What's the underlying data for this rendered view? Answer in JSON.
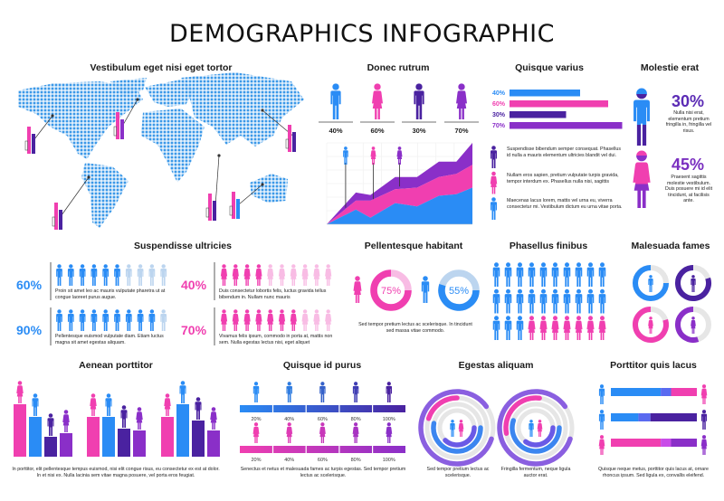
{
  "title": "DEMOGRAPHICS INFOGRAPHIC",
  "colors": {
    "blue": "#2a8cf5",
    "pink": "#f03fb0",
    "indigo": "#4a22a0",
    "purple": "#8a2fc8",
    "light_blue": "#bcd5ef",
    "light_pink": "#f8bce4",
    "ring_gray": "#e6e6e6",
    "map_dots": "#3b98e8"
  },
  "map": {
    "title": "Vestibulum eget nisi eget tortor"
  },
  "chart_data": [
    {
      "id": "donec_rutrum",
      "type": "area",
      "title": "Donec rutrum",
      "figures": [
        {
          "label": "40%",
          "figure": "male",
          "color": "#2a8cf5"
        },
        {
          "label": "60%",
          "figure": "female",
          "color": "#f03fb0"
        },
        {
          "label": "30%",
          "figure": "male",
          "color": "#4a22a0"
        },
        {
          "label": "70%",
          "figure": "female",
          "color": "#8a2fc8"
        }
      ],
      "x": [
        0,
        2,
        3,
        4.7,
        6.2,
        7.7,
        8.9,
        10
      ],
      "xlim": [
        0,
        10
      ],
      "ylim": [
        0,
        100
      ],
      "stacked": true,
      "grid": true,
      "series": [
        {
          "name": "male",
          "color": "#2a8cf5",
          "values": [
            0,
            18,
            8,
            26,
            22,
            35,
            37,
            45
          ]
        },
        {
          "name": "female",
          "color": "#f03fb0",
          "values": [
            0,
            11,
            21,
            17,
            23,
            23,
            25,
            28
          ]
        },
        {
          "name": "elderly",
          "color": "#8a2fc8",
          "values": [
            0,
            10,
            7,
            15,
            13,
            19,
            15,
            27
          ]
        }
      ],
      "pins": [
        {
          "figure": "male",
          "color": "#2a8cf5",
          "x": 1.3
        },
        {
          "figure": "female",
          "color": "#f03fb0",
          "x": 3.2
        },
        {
          "figure": "female",
          "color": "#8a2fc8",
          "x": 5.0
        }
      ]
    },
    {
      "id": "quisque_varius",
      "type": "bar",
      "orientation": "horizontal",
      "title": "Quisque varius",
      "bars": [
        {
          "label": "40%",
          "value": 40,
          "color": "#2a8cf5"
        },
        {
          "label": "60%",
          "value": 60,
          "color": "#f03fb0"
        },
        {
          "label": "30%",
          "value": 30,
          "color": "#4a22a0"
        },
        {
          "label": "70%",
          "value": 70,
          "color": "#8a2fc8"
        }
      ],
      "notes": [
        {
          "figure": "male",
          "color": "#4a22a0",
          "text": "Suspendisse bibendum semper consequat. Phasellus id nulla a mauris elementum ultricies blandit vel dui."
        },
        {
          "figure": "female",
          "color": "#f03fb0",
          "text": "Nullam eros sapien, pretium vulputate turpis gravida, tempor interdum ex. Phasellus nulla nisi, sagittis"
        },
        {
          "figure": "male",
          "color": "#2a8cf5",
          "text": "Maecenas lacus lorem, mattis vel urna eu, viverra consectetur mi. Vestibulum dictum eu urna vitae porta."
        }
      ]
    },
    {
      "id": "molestie_erat",
      "type": "stat",
      "title": "Molestie erat",
      "items": [
        {
          "label": "30%",
          "value": 30,
          "figure": "male",
          "top_color": "#2a8cf5",
          "bottom_color": "#4a22a0",
          "text": "Nulla nisi erat, elementum pretium fringilla in, fringilla vel risus."
        },
        {
          "label": "45%",
          "value": 45,
          "figure": "female",
          "top_color": "#f03fb0",
          "bottom_color": "#8a2fc8",
          "text": "Praesent sagittis molestie vestibulum. Duis posuere mi id elit tincidunt, at facilisis ante."
        }
      ]
    },
    {
      "id": "suspendisse_ultricies",
      "type": "pictogram",
      "title": "Suspendisse ultricies",
      "total": 10,
      "rows": [
        {
          "label": "60%",
          "filled": 6,
          "figure": "male",
          "color": "#2a8cf5",
          "empty_color": "#bcd5ef",
          "text": "Proin sit amet leo ac mauris vulputate pharetra ut at congue laoreet purus augue."
        },
        {
          "label": "40%",
          "filled": 4,
          "figure": "female",
          "color": "#f03fb0",
          "empty_color": "#f8bce4",
          "text": "Duis consectetur lobortis felis, luctus gravida tellus bibendum in. Nullam nunc mauris"
        },
        {
          "label": "90%",
          "filled": 9,
          "figure": "male",
          "color": "#2a8cf5",
          "empty_color": "#bcd5ef",
          "text": "Pellentesque euismod vulputate diam. Etiam luctus magna sit amet egestas aliquam."
        },
        {
          "label": "70%",
          "filled": 7,
          "figure": "female",
          "color": "#f03fb0",
          "empty_color": "#f8bce4",
          "text": "Vivamus felis ipsum, commodo in porta at, mattis non sem. Nulla egestas lectus nisi, eget aliquet"
        }
      ]
    },
    {
      "id": "pellentesque_habitant",
      "type": "pie",
      "title": "Pellentesque habitant",
      "donuts": [
        {
          "label": "75%",
          "value": 75,
          "figure": "female",
          "color": "#f03fb0",
          "rest_color": "#f8bce4"
        },
        {
          "label": "55%",
          "value": 55,
          "figure": "male",
          "color": "#2a8cf5",
          "rest_color": "#bcd5ef"
        }
      ],
      "text": "Sed tempor pretium lectus ac scelerisque. In tincidunt sed massa vitae commodo."
    },
    {
      "id": "phasellus_finibus",
      "type": "pictogram",
      "title": "Phasellus finibus",
      "total": 30,
      "male": 23,
      "female": 7,
      "male_color": "#2a8cf5",
      "female_color": "#f03fb0"
    },
    {
      "id": "malesuada_fames",
      "type": "pie",
      "title": "Malesuada fames",
      "rings": [
        {
          "value": 75,
          "figure": "male",
          "color": "#2a8cf5"
        },
        {
          "value": 80,
          "figure": "male",
          "color": "#4a22a0"
        },
        {
          "value": 80,
          "figure": "female",
          "color": "#f03fb0"
        },
        {
          "value": 55,
          "figure": "female",
          "color": "#8a2fc8"
        }
      ]
    },
    {
      "id": "aenean_porttitor",
      "type": "bar",
      "title": "Aenean porttitor",
      "ylim": [
        0,
        60
      ],
      "series": [
        {
          "name": "female",
          "figure": "female",
          "color": "#f03fb0"
        },
        {
          "name": "male",
          "figure": "male",
          "color": "#2a8cf5"
        },
        {
          "name": "elderly male",
          "figure": "male",
          "color": "#4a22a0"
        },
        {
          "name": "elderly female",
          "figure": "female",
          "color": "#8a2fc8"
        }
      ],
      "groups": [
        [
          58,
          44,
          22,
          26
        ],
        [
          44,
          44,
          31,
          29
        ],
        [
          44,
          58,
          40,
          29
        ]
      ],
      "text": "In porttitor, elit pellentesque tempus euismod, nisi elit congue risus, eu consectetur ex est at dolor. In et nisi ex. Nulla lacinia sem vitae magna posuere, vel porta eros feugiat."
    },
    {
      "id": "quisque_id_purus",
      "type": "scale",
      "title": "Quisque id purus",
      "ticks": [
        "20%",
        "40%",
        "60%",
        "80%",
        "100%"
      ],
      "rows": [
        {
          "figure": "male",
          "from": "#2a8cf5",
          "to": "#4a22a0"
        },
        {
          "figure": "female",
          "from": "#f03fb0",
          "to": "#8a2fc8"
        }
      ],
      "text": "Senectus et netus et malesuada fames ac turpis egestas. Sed tempor pretium lectus ac scelerisque."
    },
    {
      "id": "egestas_aliquam",
      "type": "radial",
      "title": "Egestas aliquam",
      "charts": [
        {
          "rings": [
            {
              "start": 0.3,
              "end": 1.15,
              "color": "#8a5fe0"
            },
            {
              "start": 0.8,
              "end": 1.0,
              "color": "#f03fb0"
            },
            {
              "start": 0.25,
              "end": 0.78,
              "color": "#3c86f0"
            },
            {
              "start": 0.25,
              "end": 0.62,
              "color": "#6a5ae6"
            }
          ],
          "text": "Sed tempor pretium lectus ac scelerisque."
        },
        {
          "rings": [
            {
              "start": 0.3,
              "end": 1.15,
              "color": "#8a5fe0"
            },
            {
              "start": 0.72,
              "end": 1.02,
              "color": "#f03fb0"
            },
            {
              "start": 0.25,
              "end": 0.8,
              "color": "#3c86f0"
            },
            {
              "start": 0.25,
              "end": 0.6,
              "color": "#6a5ae6"
            }
          ],
          "text": "Fringilla fermentum, neque ligula auctor erat."
        }
      ]
    },
    {
      "id": "porttitor_quis_lacus",
      "type": "bar",
      "orientation": "horizontal",
      "stacked": true,
      "title": "Porttitor quis lacus",
      "rows": [
        {
          "left": {
            "figure": "male",
            "color": "#2a8cf5"
          },
          "right": {
            "figure": "female",
            "color": "#f03fb0"
          },
          "segments": [
            {
              "value": 58,
              "color": "#2a8cf5"
            },
            {
              "value": 12,
              "color": "#5a6af0"
            },
            {
              "value": 30,
              "color": "#f03fb0"
            }
          ]
        },
        {
          "left": {
            "figure": "male",
            "color": "#2a8cf5"
          },
          "right": {
            "figure": "male",
            "color": "#4a22a0"
          },
          "segments": [
            {
              "value": 32,
              "color": "#2a8cf5"
            },
            {
              "value": 14,
              "color": "#5a6af0"
            },
            {
              "value": 54,
              "color": "#4a22a0"
            }
          ]
        },
        {
          "left": {
            "figure": "female",
            "color": "#f03fb0"
          },
          "right": {
            "figure": "female",
            "color": "#8a2fc8"
          },
          "segments": [
            {
              "value": 58,
              "color": "#f03fb0"
            },
            {
              "value": 12,
              "color": "#c94ce8"
            },
            {
              "value": 30,
              "color": "#8a2fc8"
            }
          ]
        }
      ],
      "text": "Quisque neque metus, porttitor quis lacus at, ornare rhoncus ipsum. Sed ligula ex, convallis eleifend."
    }
  ]
}
